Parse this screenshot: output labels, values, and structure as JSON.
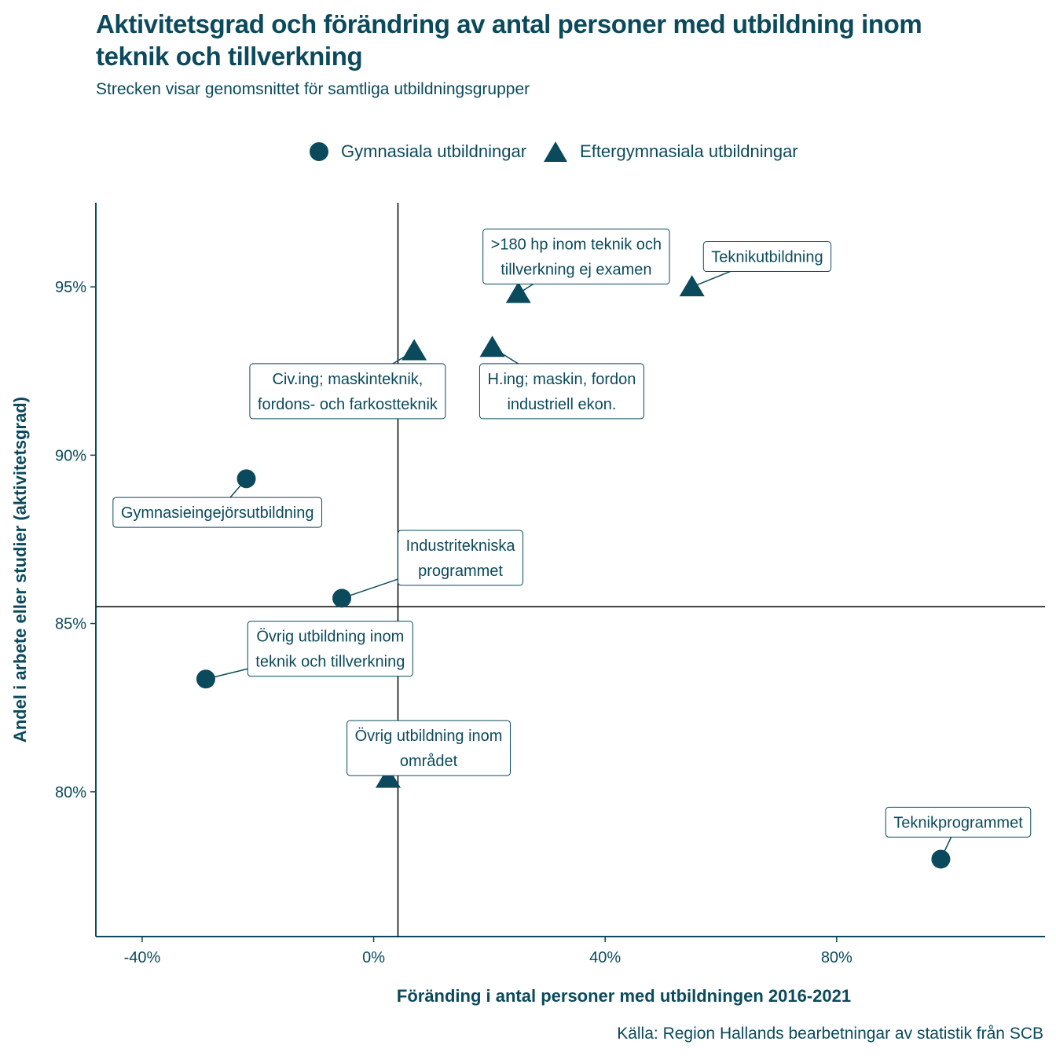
{
  "chart_data": {
    "type": "scatter",
    "title": "Aktivitetsgrad och förändring av antal personer med utbildning inom teknik och tillverkning",
    "subtitle": "Strecken visar genomsnittet för samtliga utbildningsgrupper",
    "xlabel": "Föränding i antal personer med utbildningen 2016-2021",
    "ylabel": "Andel i arbete eller studier (aktivitetsgrad)",
    "caption": "Källa: Region Hallands bearbetningar av statistik från SCB",
    "xlim": [
      -48,
      116
    ],
    "ylim": [
      75.7,
      97.5
    ],
    "x_ticks": [
      -40,
      0,
      40,
      80
    ],
    "x_tick_labels": [
      "-40%",
      "0%",
      "40%",
      "80%"
    ],
    "y_ticks": [
      80,
      85,
      90,
      95
    ],
    "y_tick_labels": [
      "80%",
      "85%",
      "90%",
      "95%"
    ],
    "reference_lines": {
      "x": 4.2,
      "y": 85.5
    },
    "legend": {
      "position": "top",
      "entries": [
        {
          "name": "Gymnasiala utbildningar",
          "shape": "circle"
        },
        {
          "name": "Eftergymnasiala utbildningar",
          "shape": "triangle"
        }
      ]
    },
    "color": "#0b4a5c",
    "series": [
      {
        "name": "Gymnasiala utbildningar",
        "shape": "circle",
        "points": [
          {
            "label": "Gymnasieingejörsutbildning",
            "x": -22,
            "y": 89.3,
            "lx": -27,
            "ly": 88.3
          },
          {
            "label": "Industritekniska programmet",
            "x": -5.5,
            "y": 85.75,
            "lx": 15,
            "ly": 86.95
          },
          {
            "label": "Övrig utbildning inom teknik och tillverkning",
            "x": -29,
            "y": 83.35,
            "lx": -7.5,
            "ly": 84.25
          },
          {
            "label": "Teknikprogrammet",
            "x": 98,
            "y": 78.0,
            "lx": 101,
            "ly": 79.1
          }
        ]
      },
      {
        "name": "Eftergymnasiala utbildningar",
        "shape": "triangle",
        "points": [
          {
            "label": ">180 hp inom teknik och tillverkning ej examen",
            "x": 25,
            "y": 94.8,
            "lx": 35,
            "ly": 95.9
          },
          {
            "label": "Teknikutbildning",
            "x": 55,
            "y": 95.0,
            "lx": 68,
            "ly": 95.9
          },
          {
            "label": "Civ.ing; maskinteknik, fordons- och farkostteknik",
            "x": 7,
            "y": 93.1,
            "lx": -4.5,
            "ly": 91.9
          },
          {
            "label": "H.ing; maskin, fordon industriell ekon.",
            "x": 20.5,
            "y": 93.2,
            "lx": 32.5,
            "ly": 91.9
          },
          {
            "label": "Övrig utbildning inom området",
            "x": 2.5,
            "y": 80.4,
            "lx": 9.5,
            "ly": 81.3
          }
        ]
      }
    ]
  }
}
